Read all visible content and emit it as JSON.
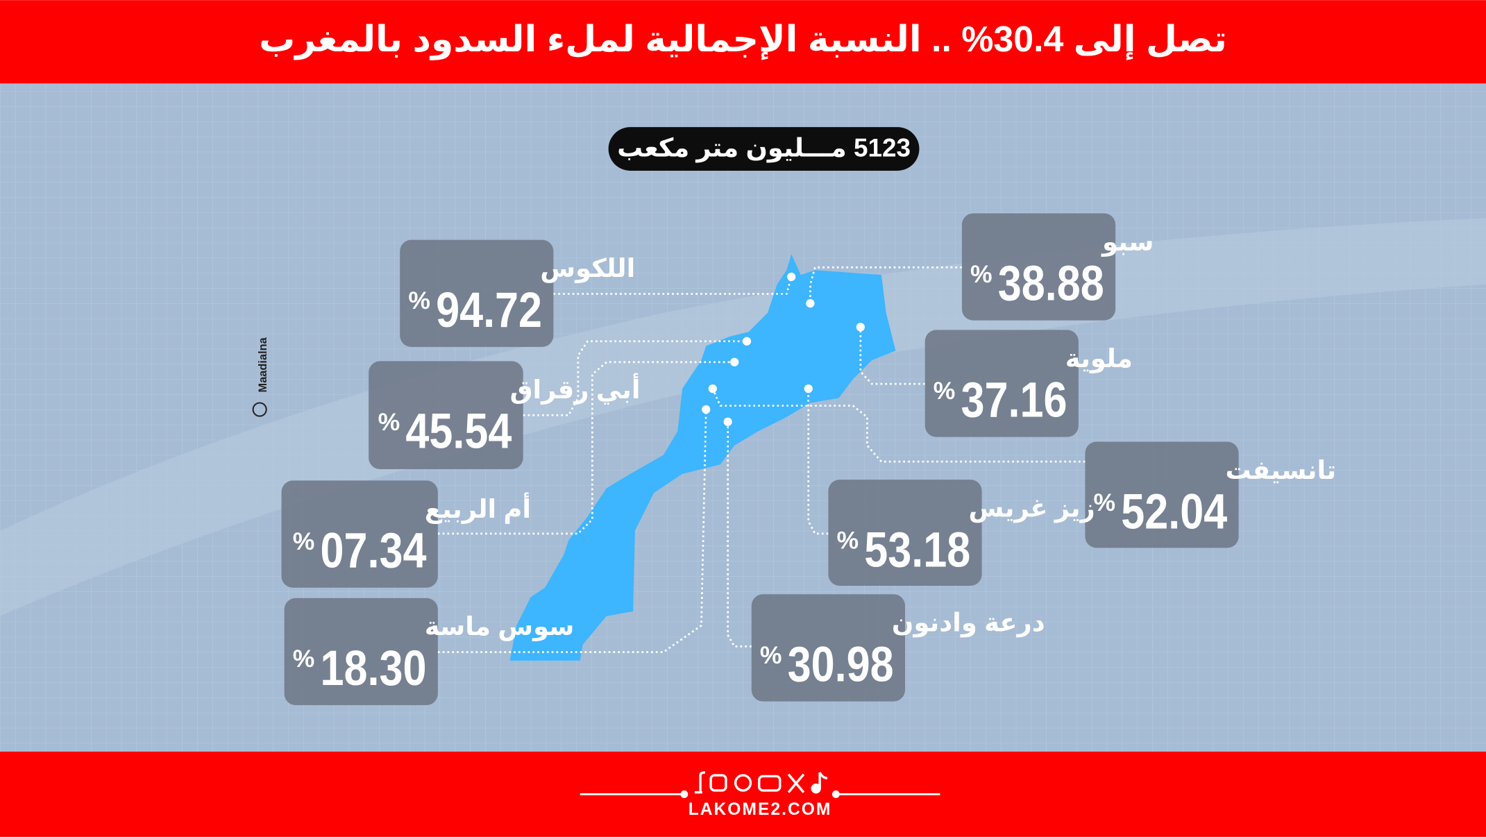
{
  "header": {
    "title": "تصل إلى 30.4% .. النسبة الإجمالية لملء السدود بالمغرب"
  },
  "total": "5123 مـــليون متر مكعب",
  "watermark": "Maadialna",
  "basins": [
    {
      "name": "اللكوس",
      "value": "94.72",
      "unit": "%"
    },
    {
      "name": "أبي رقراق",
      "value": "45.54",
      "unit": "%"
    },
    {
      "name": "أم الربيع",
      "value": "07.34",
      "unit": "%"
    },
    {
      "name": "سوس ماسة",
      "value": "18.30",
      "unit": "%"
    },
    {
      "name": "سبو",
      "value": "38.88",
      "unit": "%"
    },
    {
      "name": "ملوية",
      "value": "37.16",
      "unit": "%"
    },
    {
      "name": "تانسيفت",
      "value": "52.04",
      "unit": "%"
    },
    {
      "name": "زيز غريس",
      "value": "53.18",
      "unit": "%"
    },
    {
      "name": "درعة وادنون",
      "value": "30.98",
      "unit": "%"
    }
  ],
  "footer": {
    "site": "LAKOME2.COM"
  }
}
